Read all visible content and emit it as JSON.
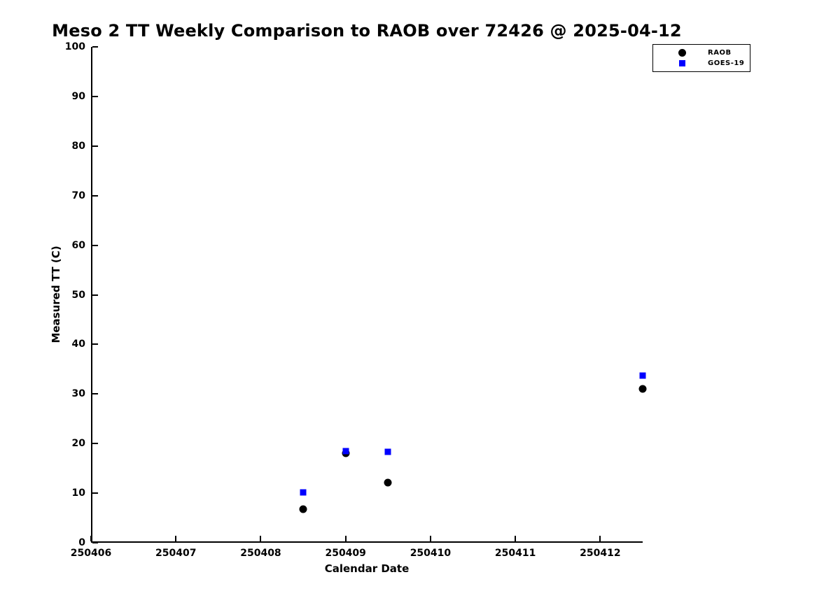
{
  "chart_data": {
    "type": "scatter",
    "title": "Meso 2 TT Weekly Comparison to RAOB over 72426 @ 2025-04-12",
    "xlabel": "Calendar Date",
    "ylabel": "Measured TT (C)",
    "xlim": [
      250406,
      250412.5
    ],
    "ylim": [
      0,
      100
    ],
    "x_ticks": [
      250406,
      250407,
      250408,
      250409,
      250410,
      250411,
      250412
    ],
    "y_ticks": [
      0,
      10,
      20,
      30,
      40,
      50,
      60,
      70,
      80,
      90,
      100
    ],
    "grid": false,
    "legend_position": "top-right",
    "series": [
      {
        "name": "RAOB",
        "marker": "circle",
        "color": "#000000",
        "points": [
          [
            250408.5,
            6.7
          ],
          [
            250409.0,
            18.0
          ],
          [
            250409.5,
            12.2
          ],
          [
            250412.5,
            31.1
          ]
        ]
      },
      {
        "name": "GOES-19",
        "marker": "square",
        "color": "#0000ff",
        "points": [
          [
            250408.5,
            10.2
          ],
          [
            250409.0,
            18.5
          ],
          [
            250409.5,
            18.3
          ],
          [
            250412.5,
            33.7
          ]
        ]
      }
    ]
  }
}
